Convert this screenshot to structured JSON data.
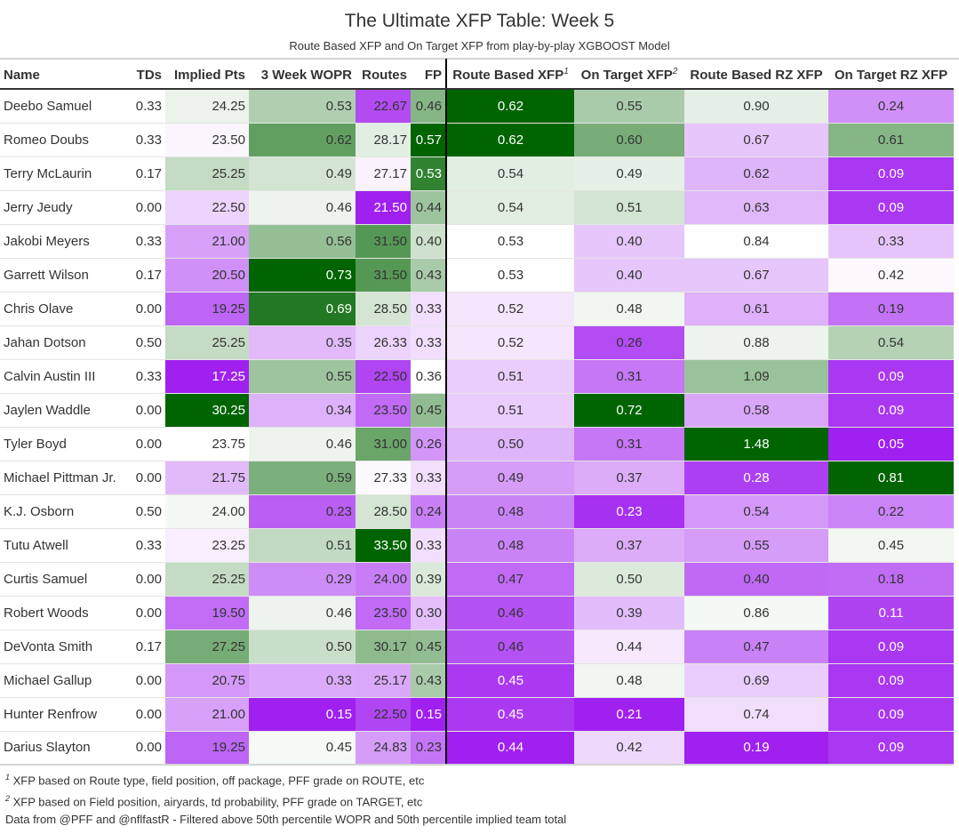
{
  "title": "The Ultimate XFP Table: Week 5",
  "subtitle": "Route Based XFP and On Target XFP from play-by-play XGBOOST Model",
  "columns": [
    {
      "key": "name",
      "label": "Name",
      "sup": ""
    },
    {
      "key": "tds",
      "label": "TDs",
      "sup": ""
    },
    {
      "key": "implied_pts",
      "label": "Implied Pts",
      "sup": ""
    },
    {
      "key": "wopr",
      "label": "3 Week WOPR",
      "sup": ""
    },
    {
      "key": "routes",
      "label": "Routes",
      "sup": ""
    },
    {
      "key": "fp",
      "label": "FP",
      "sup": ""
    },
    {
      "key": "route_xfp",
      "label": "Route Based XFP",
      "sup": "1"
    },
    {
      "key": "target_xfp",
      "label": "On Target XFP",
      "sup": "2"
    },
    {
      "key": "route_rz_xfp",
      "label": "Route Based RZ XFP",
      "sup": ""
    },
    {
      "key": "target_rz_xfp",
      "label": "On Target RZ XFP",
      "sup": ""
    }
  ],
  "colors": {
    "min": "#a020f0",
    "mid": "#ffffff",
    "max": "#006400"
  },
  "chart_data": {
    "type": "table",
    "rows": [
      {
        "name": "Deebo Samuel",
        "tds": "0.33",
        "implied_pts": "24.25",
        "wopr": "0.53",
        "routes": "22.67",
        "fp": "0.46",
        "route_xfp": "0.62",
        "target_xfp": "0.55",
        "route_rz_xfp": "0.90",
        "target_rz_xfp": "0.24"
      },
      {
        "name": "Romeo Doubs",
        "tds": "0.33",
        "implied_pts": "23.50",
        "wopr": "0.62",
        "routes": "28.17",
        "fp": "0.57",
        "route_xfp": "0.62",
        "target_xfp": "0.60",
        "route_rz_xfp": "0.67",
        "target_rz_xfp": "0.61"
      },
      {
        "name": "Terry McLaurin",
        "tds": "0.17",
        "implied_pts": "25.25",
        "wopr": "0.49",
        "routes": "27.17",
        "fp": "0.53",
        "route_xfp": "0.54",
        "target_xfp": "0.49",
        "route_rz_xfp": "0.62",
        "target_rz_xfp": "0.09"
      },
      {
        "name": "Jerry Jeudy",
        "tds": "0.00",
        "implied_pts": "22.50",
        "wopr": "0.46",
        "routes": "21.50",
        "fp": "0.44",
        "route_xfp": "0.54",
        "target_xfp": "0.51",
        "route_rz_xfp": "0.63",
        "target_rz_xfp": "0.09"
      },
      {
        "name": "Jakobi Meyers",
        "tds": "0.33",
        "implied_pts": "21.00",
        "wopr": "0.56",
        "routes": "31.50",
        "fp": "0.40",
        "route_xfp": "0.53",
        "target_xfp": "0.40",
        "route_rz_xfp": "0.84",
        "target_rz_xfp": "0.33"
      },
      {
        "name": "Garrett Wilson",
        "tds": "0.17",
        "implied_pts": "20.50",
        "wopr": "0.73",
        "routes": "31.50",
        "fp": "0.43",
        "route_xfp": "0.53",
        "target_xfp": "0.40",
        "route_rz_xfp": "0.67",
        "target_rz_xfp": "0.42"
      },
      {
        "name": "Chris Olave",
        "tds": "0.00",
        "implied_pts": "19.25",
        "wopr": "0.69",
        "routes": "28.50",
        "fp": "0.33",
        "route_xfp": "0.52",
        "target_xfp": "0.48",
        "route_rz_xfp": "0.61",
        "target_rz_xfp": "0.19"
      },
      {
        "name": "Jahan Dotson",
        "tds": "0.50",
        "implied_pts": "25.25",
        "wopr": "0.35",
        "routes": "26.33",
        "fp": "0.33",
        "route_xfp": "0.52",
        "target_xfp": "0.26",
        "route_rz_xfp": "0.88",
        "target_rz_xfp": "0.54"
      },
      {
        "name": "Calvin Austin III",
        "tds": "0.33",
        "implied_pts": "17.25",
        "wopr": "0.55",
        "routes": "22.50",
        "fp": "0.36",
        "route_xfp": "0.51",
        "target_xfp": "0.31",
        "route_rz_xfp": "1.09",
        "target_rz_xfp": "0.09"
      },
      {
        "name": "Jaylen Waddle",
        "tds": "0.00",
        "implied_pts": "30.25",
        "wopr": "0.34",
        "routes": "23.50",
        "fp": "0.45",
        "route_xfp": "0.51",
        "target_xfp": "0.72",
        "route_rz_xfp": "0.58",
        "target_rz_xfp": "0.09"
      },
      {
        "name": "Tyler Boyd",
        "tds": "0.00",
        "implied_pts": "23.75",
        "wopr": "0.46",
        "routes": "31.00",
        "fp": "0.26",
        "route_xfp": "0.50",
        "target_xfp": "0.31",
        "route_rz_xfp": "1.48",
        "target_rz_xfp": "0.05"
      },
      {
        "name": "Michael Pittman Jr.",
        "tds": "0.00",
        "implied_pts": "21.75",
        "wopr": "0.59",
        "routes": "27.33",
        "fp": "0.33",
        "route_xfp": "0.49",
        "target_xfp": "0.37",
        "route_rz_xfp": "0.28",
        "target_rz_xfp": "0.81"
      },
      {
        "name": "K.J. Osborn",
        "tds": "0.50",
        "implied_pts": "24.00",
        "wopr": "0.23",
        "routes": "28.50",
        "fp": "0.24",
        "route_xfp": "0.48",
        "target_xfp": "0.23",
        "route_rz_xfp": "0.54",
        "target_rz_xfp": "0.22"
      },
      {
        "name": "Tutu Atwell",
        "tds": "0.33",
        "implied_pts": "23.25",
        "wopr": "0.51",
        "routes": "33.50",
        "fp": "0.33",
        "route_xfp": "0.48",
        "target_xfp": "0.37",
        "route_rz_xfp": "0.55",
        "target_rz_xfp": "0.45"
      },
      {
        "name": "Curtis Samuel",
        "tds": "0.00",
        "implied_pts": "25.25",
        "wopr": "0.29",
        "routes": "24.00",
        "fp": "0.39",
        "route_xfp": "0.47",
        "target_xfp": "0.50",
        "route_rz_xfp": "0.40",
        "target_rz_xfp": "0.18"
      },
      {
        "name": "Robert Woods",
        "tds": "0.00",
        "implied_pts": "19.50",
        "wopr": "0.46",
        "routes": "23.50",
        "fp": "0.30",
        "route_xfp": "0.46",
        "target_xfp": "0.39",
        "route_rz_xfp": "0.86",
        "target_rz_xfp": "0.11"
      },
      {
        "name": "DeVonta Smith",
        "tds": "0.17",
        "implied_pts": "27.25",
        "wopr": "0.50",
        "routes": "30.17",
        "fp": "0.45",
        "route_xfp": "0.46",
        "target_xfp": "0.44",
        "route_rz_xfp": "0.47",
        "target_rz_xfp": "0.09"
      },
      {
        "name": "Michael Gallup",
        "tds": "0.00",
        "implied_pts": "20.75",
        "wopr": "0.33",
        "routes": "25.17",
        "fp": "0.43",
        "route_xfp": "0.45",
        "target_xfp": "0.48",
        "route_rz_xfp": "0.69",
        "target_rz_xfp": "0.09"
      },
      {
        "name": "Hunter Renfrow",
        "tds": "0.00",
        "implied_pts": "21.00",
        "wopr": "0.15",
        "routes": "22.50",
        "fp": "0.15",
        "route_xfp": "0.45",
        "target_xfp": "0.21",
        "route_rz_xfp": "0.74",
        "target_rz_xfp": "0.09"
      },
      {
        "name": "Darius Slayton",
        "tds": "0.00",
        "implied_pts": "19.25",
        "wopr": "0.45",
        "routes": "24.83",
        "fp": "0.23",
        "route_xfp": "0.44",
        "target_xfp": "0.42",
        "route_rz_xfp": "0.19",
        "target_rz_xfp": "0.09"
      }
    ]
  },
  "footnotes": [
    {
      "mark": "1",
      "text": "XFP based on Route type, field position, off package, PFF grade on ROUTE, etc"
    },
    {
      "mark": "2",
      "text": "XFP based on Field position, airyards, td probability, PFF grade on TARGET, etc"
    },
    {
      "mark": "",
      "text": "Data from @PFF and @nflfastR - Filtered above 50th percentile WOPR and 50th percentile implied team total"
    }
  ]
}
